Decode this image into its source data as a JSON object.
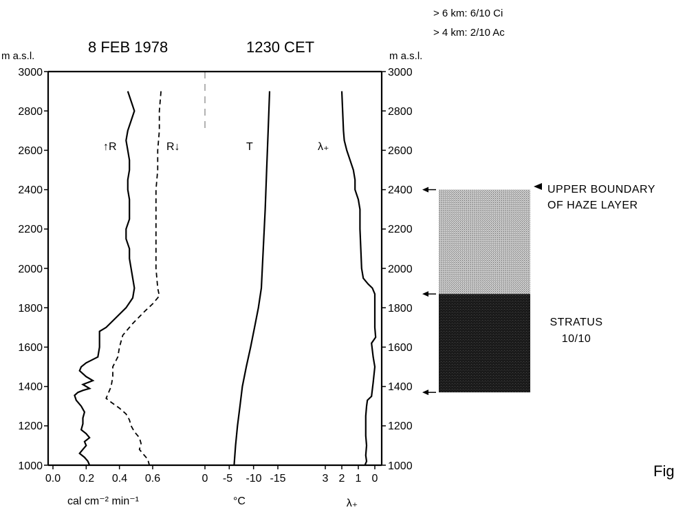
{
  "figure": {
    "date": "8 FEB 1978",
    "time": "1230 CET",
    "cloud_high": "> 6 km: 6/10 Ci",
    "cloud_mid": "> 4 km: 2/10 Ac",
    "unit_left": "m a.s.l.",
    "unit_right": "m a.s.l.",
    "fig_label": "Fig"
  },
  "chart_data": {
    "type": "line",
    "y_axis": {
      "label": "m a.s.l.",
      "range": [
        1000,
        3000
      ],
      "ticks": [
        "3000",
        "2800",
        "2600",
        "2400",
        "2200",
        "2000",
        "1800",
        "1600",
        "1400",
        "1200",
        "1000"
      ],
      "right_ticks": [
        "3000",
        "2800",
        "2600",
        "2400",
        "2200",
        "2000",
        "1800",
        "1600",
        "1400",
        "1200",
        "1000"
      ]
    },
    "panels": [
      {
        "name": "radiation",
        "xlabel": "cal cm⁻² min⁻¹",
        "xlim": [
          0.0,
          0.7
        ],
        "ticks": [
          "0.0",
          "0.2",
          "0.4",
          "0.6"
        ],
        "tick_values": [
          0.0,
          0.2,
          0.4,
          0.6
        ],
        "series": [
          {
            "name": "↑R",
            "style": "solid",
            "points": [
              [
                0.45,
                2900
              ],
              [
                0.47,
                2850
              ],
              [
                0.49,
                2800
              ],
              [
                0.47,
                2750
              ],
              [
                0.45,
                2700
              ],
              [
                0.44,
                2650
              ],
              [
                0.45,
                2600
              ],
              [
                0.46,
                2550
              ],
              [
                0.46,
                2500
              ],
              [
                0.45,
                2450
              ],
              [
                0.45,
                2400
              ],
              [
                0.46,
                2350
              ],
              [
                0.46,
                2300
              ],
              [
                0.46,
                2250
              ],
              [
                0.44,
                2200
              ],
              [
                0.44,
                2150
              ],
              [
                0.46,
                2100
              ],
              [
                0.46,
                2050
              ],
              [
                0.47,
                2000
              ],
              [
                0.48,
                1950
              ],
              [
                0.49,
                1900
              ],
              [
                0.48,
                1850
              ],
              [
                0.44,
                1800
              ],
              [
                0.38,
                1750
              ],
              [
                0.32,
                1700
              ],
              [
                0.28,
                1680
              ],
              [
                0.28,
                1600
              ],
              [
                0.27,
                1550
              ],
              [
                0.2,
                1520
              ],
              [
                0.17,
                1500
              ],
              [
                0.16,
                1480
              ],
              [
                0.2,
                1450
              ],
              [
                0.24,
                1430
              ],
              [
                0.18,
                1410
              ],
              [
                0.22,
                1390
              ],
              [
                0.18,
                1380
              ],
              [
                0.15,
                1370
              ],
              [
                0.13,
                1355
              ],
              [
                0.14,
                1330
              ],
              [
                0.17,
                1300
              ],
              [
                0.19,
                1270
              ],
              [
                0.18,
                1240
              ],
              [
                0.18,
                1210
              ],
              [
                0.17,
                1180
              ],
              [
                0.2,
                1160
              ],
              [
                0.22,
                1140
              ],
              [
                0.19,
                1120
              ],
              [
                0.2,
                1100
              ],
              [
                0.18,
                1080
              ],
              [
                0.16,
                1060
              ],
              [
                0.19,
                1040
              ],
              [
                0.21,
                1020
              ],
              [
                0.22,
                1000
              ]
            ]
          },
          {
            "name": "R↓",
            "style": "dashed",
            "points": [
              [
                0.65,
                2900
              ],
              [
                0.64,
                2800
              ],
              [
                0.64,
                2700
              ],
              [
                0.63,
                2600
              ],
              [
                0.63,
                2500
              ],
              [
                0.62,
                2400
              ],
              [
                0.62,
                2300
              ],
              [
                0.62,
                2200
              ],
              [
                0.62,
                2100
              ],
              [
                0.62,
                2000
              ],
              [
                0.63,
                1900
              ],
              [
                0.64,
                1860
              ],
              [
                0.6,
                1820
              ],
              [
                0.55,
                1780
              ],
              [
                0.48,
                1720
              ],
              [
                0.42,
                1660
              ],
              [
                0.4,
                1600
              ],
              [
                0.39,
                1550
              ],
              [
                0.36,
                1500
              ],
              [
                0.36,
                1450
              ],
              [
                0.35,
                1400
              ],
              [
                0.33,
                1360
              ],
              [
                0.32,
                1340
              ],
              [
                0.35,
                1320
              ],
              [
                0.4,
                1290
              ],
              [
                0.44,
                1260
              ],
              [
                0.46,
                1230
              ],
              [
                0.47,
                1200
              ],
              [
                0.49,
                1170
              ],
              [
                0.52,
                1140
              ],
              [
                0.53,
                1110
              ],
              [
                0.52,
                1080
              ],
              [
                0.55,
                1050
              ],
              [
                0.57,
                1030
              ],
              [
                0.58,
                1000
              ]
            ]
          }
        ]
      },
      {
        "name": "temperature",
        "xlabel": "°C",
        "xlim": [
          0,
          -18
        ],
        "ticks": [
          "0",
          "-5",
          "-10",
          "-15"
        ],
        "tick_values": [
          0,
          -5,
          -10,
          -15
        ],
        "series": [
          {
            "name": "T",
            "style": "solid",
            "points": [
              [
                -13.3,
                2900
              ],
              [
                -13.0,
                2700
              ],
              [
                -12.7,
                2500
              ],
              [
                -12.4,
                2300
              ],
              [
                -12.0,
                2100
              ],
              [
                -11.6,
                1900
              ],
              [
                -11.0,
                1800
              ],
              [
                -10.2,
                1700
              ],
              [
                -9.4,
                1600
              ],
              [
                -8.5,
                1500
              ],
              [
                -7.7,
                1400
              ],
              [
                -7.2,
                1300
              ],
              [
                -6.7,
                1200
              ],
              [
                -6.3,
                1100
              ],
              [
                -6.0,
                1000
              ]
            ]
          }
        ]
      },
      {
        "name": "lambda",
        "xlabel": "λ₊",
        "xlim": [
          3.6,
          -0.2
        ],
        "ticks": [
          "3",
          "2",
          "1",
          "0"
        ],
        "tick_values": [
          3,
          2,
          1,
          0
        ],
        "series": [
          {
            "name": "λ₊",
            "style": "solid",
            "points": [
              [
                2.0,
                2900
              ],
              [
                1.95,
                2800
              ],
              [
                1.9,
                2700
              ],
              [
                1.85,
                2650
              ],
              [
                1.7,
                2600
              ],
              [
                1.5,
                2550
              ],
              [
                1.3,
                2500
              ],
              [
                1.2,
                2450
              ],
              [
                1.2,
                2400
              ],
              [
                1.0,
                2350
              ],
              [
                0.9,
                2300
              ],
              [
                0.9,
                2200
              ],
              [
                0.85,
                2100
              ],
              [
                0.8,
                2000
              ],
              [
                0.7,
                1950
              ],
              [
                0.4,
                1920
              ],
              [
                0.15,
                1900
              ],
              [
                0.0,
                1870
              ],
              [
                0.0,
                1800
              ],
              [
                0.0,
                1700
              ],
              [
                -0.05,
                1650
              ],
              [
                0.2,
                1620
              ],
              [
                0.1,
                1550
              ],
              [
                0.0,
                1500
              ],
              [
                0.1,
                1420
              ],
              [
                0.2,
                1350
              ],
              [
                0.45,
                1330
              ],
              [
                0.5,
                1300
              ],
              [
                0.55,
                1250
              ],
              [
                0.55,
                1150
              ],
              [
                0.5,
                1100
              ],
              [
                0.55,
                1050
              ],
              [
                0.5,
                1020
              ],
              [
                0.6,
                1000
              ]
            ]
          }
        ]
      }
    ],
    "layers": [
      {
        "name": "haze",
        "from": 1870,
        "to": 2400,
        "label_1": "UPPER BOUNDARY",
        "label_2": "OF HAZE LAYER"
      },
      {
        "name": "stratus",
        "from": 1370,
        "to": 1870,
        "label_1": "STRATUS",
        "label_2": "10/10"
      }
    ]
  }
}
